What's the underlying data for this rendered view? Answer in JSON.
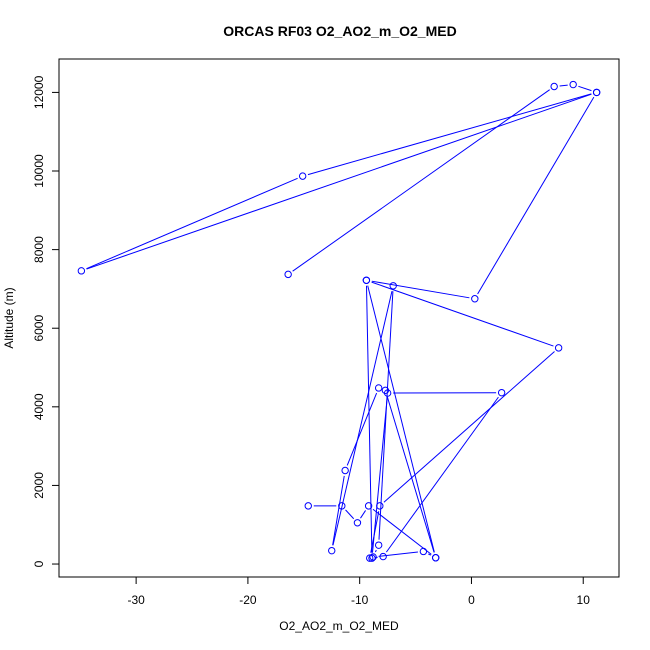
{
  "chart_data": {
    "type": "line",
    "title": "ORCAS RF03 O2_AO2_m_O2_MED",
    "xlabel": "O2_AO2_m_O2_MED",
    "ylabel": "Altitude (m)",
    "xlim": [
      -36.9,
      13.2
    ],
    "ylim": [
      -330,
      12850
    ],
    "x_ticks": [
      -30,
      -20,
      -10,
      0,
      10
    ],
    "y_ticks": [
      0,
      2000,
      4000,
      6000,
      8000,
      10000,
      12000
    ],
    "x_tick_labels": [
      "-30",
      "-20",
      "-10",
      "0",
      "10"
    ],
    "y_tick_labels": [
      "0",
      "2000",
      "4000",
      "6000",
      "8000",
      "10000",
      "12000"
    ],
    "line_color": "#0000ff",
    "marker": "open-circle",
    "series": [
      {
        "x": [
          -14.6,
          -11.6,
          -10.2,
          -9.2,
          -3.2,
          -4.3,
          -8.8,
          -8.3,
          -7.0,
          -12.5,
          -11.3,
          -8.3,
          -7.7,
          -3.2,
          -9.4,
          -8.9,
          -7.5,
          2.7,
          -7.9,
          -9.1,
          -8.2,
          7.8,
          -9.4,
          0.3,
          11.2,
          -34.9,
          -15.1,
          11.2,
          9.1,
          7.4,
          -16.4
        ],
        "y": [
          1480,
          1480,
          1050,
          1480,
          160,
          320,
          180,
          480,
          7080,
          340,
          2380,
          4480,
          4420,
          160,
          7220,
          150,
          4350,
          4360,
          190,
          150,
          1480,
          5500,
          7220,
          6750,
          12000,
          7460,
          9870,
          12000,
          12200,
          12150,
          7370
        ]
      }
    ]
  }
}
